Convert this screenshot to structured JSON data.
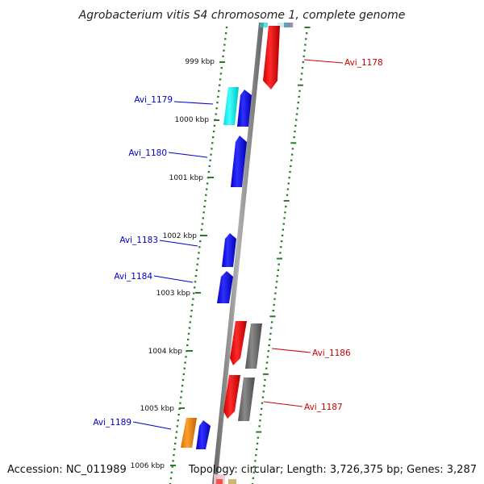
{
  "title": "Agrobacterium vitis S4 chromosome 1, complete genome",
  "accession": "Accession: NC_011989",
  "topology": "Topology: circular; Length: 3,726,375 bp; Genes: 3,287",
  "colors": {
    "forward": "#0000ff",
    "reverse": "#ff0000",
    "gray_feature": "#6e6e6e",
    "cyan_feature": "#19f0f0",
    "orange_feature": "#f28c00",
    "tick": "#2a7a2a",
    "backbone": "#8a8a8a"
  },
  "kbp_ticks": [
    {
      "label": "999 kbp"
    },
    {
      "label": "1000 kbp"
    },
    {
      "label": "1001 kbp"
    },
    {
      "label": "1002 kbp"
    },
    {
      "label": "1003 kbp"
    },
    {
      "label": "1004 kbp"
    },
    {
      "label": "1005 kbp"
    },
    {
      "label": "1006 kbp"
    }
  ],
  "genes_left": [
    {
      "name": "Avi_1179"
    },
    {
      "name": "Avi_1180"
    },
    {
      "name": "Avi_1183"
    },
    {
      "name": "Avi_1184"
    },
    {
      "name": "Avi_1189"
    }
  ],
  "genes_right": [
    {
      "name": "Avi_1178"
    },
    {
      "name": "Avi_1186"
    },
    {
      "name": "Avi_1187"
    }
  ]
}
